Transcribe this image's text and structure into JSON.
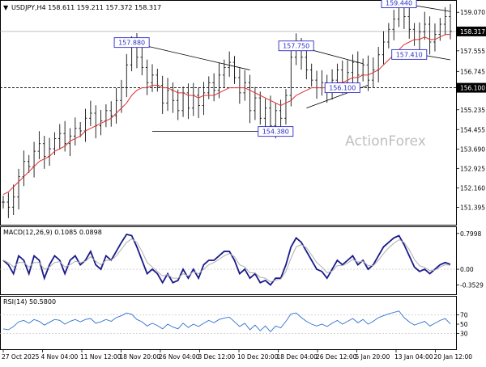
{
  "colors": {
    "price_bar": "#111111",
    "ma": "#e03030",
    "trendline": "#000000",
    "label_box": "#2b2bc9",
    "macd_main": "#1a1a8c",
    "macd_signal": "#b0b0b0",
    "rsi": "#2e6fd0",
    "current_price_box": "#000000",
    "watermark": "#bfbfbf"
  },
  "watermark": "ActionForex",
  "chart_data": [
    {
      "type": "candlestick",
      "title": "USDJPY,H4  158.611 159.211 157.372 158.317",
      "ylim": [
        150.9,
        159.3
      ],
      "y_ticks": [
        "159.070",
        "158.317",
        "157.555",
        "156.745",
        "156.100",
        "155.235",
        "154.455",
        "153.690",
        "152.925",
        "152.160",
        "151.395"
      ],
      "current_price": 158.317,
      "close_series": [
        151.6,
        151.4,
        151.8,
        152.6,
        153.2,
        153.0,
        153.6,
        153.9,
        153.4,
        153.7,
        154.1,
        154.3,
        153.9,
        154.2,
        154.5,
        154.4,
        154.9,
        155.1,
        154.6,
        154.8,
        155.2,
        155.0,
        155.6,
        156.1,
        157.0,
        157.88,
        157.3,
        156.9,
        156.3,
        156.6,
        156.2,
        155.5,
        156.0,
        155.6,
        155.2,
        155.9,
        155.3,
        155.8,
        155.4,
        155.9,
        156.3,
        156.0,
        156.6,
        156.9,
        157.1,
        156.5,
        155.9,
        156.3,
        155.2,
        155.7,
        154.9,
        155.3,
        154.6,
        155.2,
        154.9,
        155.8,
        157.3,
        157.75,
        157.3,
        156.8,
        156.4,
        156.1,
        156.3,
        156.0,
        156.4,
        156.8,
        156.3,
        156.7,
        157.1,
        156.6,
        157.0,
        156.4,
        156.8,
        157.4,
        157.9,
        158.4,
        158.8,
        159.44,
        158.9,
        158.4,
        158.0,
        158.3,
        158.6,
        157.9,
        158.2,
        158.6,
        158.9,
        158.317
      ],
      "ma_series": [
        151.9,
        152.0,
        152.2,
        152.4,
        152.6,
        152.8,
        153.0,
        153.2,
        153.3,
        153.4,
        153.6,
        153.7,
        153.8,
        154.0,
        154.1,
        154.2,
        154.4,
        154.5,
        154.6,
        154.7,
        154.8,
        154.9,
        155.1,
        155.3,
        155.5,
        155.8,
        156.0,
        156.1,
        156.1,
        156.2,
        156.2,
        156.1,
        156.1,
        156.0,
        155.9,
        155.9,
        155.8,
        155.8,
        155.7,
        155.8,
        155.8,
        155.8,
        155.9,
        156.0,
        156.1,
        156.1,
        156.1,
        156.1,
        156.0,
        155.9,
        155.8,
        155.7,
        155.6,
        155.5,
        155.4,
        155.5,
        155.6,
        155.8,
        155.9,
        156.0,
        156.1,
        156.1,
        156.1,
        156.1,
        156.2,
        156.3,
        156.3,
        156.4,
        156.5,
        156.5,
        156.6,
        156.6,
        156.7,
        156.8,
        157.0,
        157.2,
        157.4,
        157.6,
        157.8,
        157.9,
        158.0,
        158.0,
        158.1,
        158.0,
        158.0,
        158.1,
        158.2,
        158.2
      ],
      "annotations": [
        {
          "label": "157.880",
          "value": 157.88,
          "index": 25
        },
        {
          "label": "154.380",
          "value": 154.38,
          "index": 53
        },
        {
          "label": "157.750",
          "value": 157.75,
          "index": 57
        },
        {
          "label": "156.100",
          "value": 156.1,
          "index": 66
        },
        {
          "label": "159.440",
          "value": 159.44,
          "index": 77
        },
        {
          "label": "157.410",
          "value": 157.41,
          "index": 79
        }
      ],
      "horizontal_lines": [
        {
          "value": 156.1,
          "style": "dashed",
          "label": "156.100"
        },
        {
          "value": 154.38,
          "style": "solid",
          "from_index": 29,
          "to_index": 55
        }
      ],
      "trendlines": [
        {
          "from": [
            25,
            157.88
          ],
          "to": [
            48,
            156.8
          ]
        },
        {
          "from": [
            57,
            157.75
          ],
          "to": [
            70,
            157.05
          ]
        },
        {
          "from": [
            59,
            155.3
          ],
          "to": [
            71,
            156.2
          ]
        },
        {
          "from": [
            77,
            159.44
          ],
          "to": [
            87,
            159.1
          ]
        },
        {
          "from": [
            77,
            157.55
          ],
          "to": [
            87,
            157.2
          ]
        }
      ],
      "x_tick_labels": [
        "27 Oct 2025",
        "4 Nov 04:00",
        "11 Nov 12:00",
        "18 Nov 20:00",
        "26 Nov 04:00",
        "3 Dec 12:00",
        "10 Dec 20:00",
        "18 Dec 04:00",
        "26 Dec 12:00",
        "5 Jan 20:00",
        "13 Jan 04:00",
        "20 Jan 12:00"
      ]
    },
    {
      "type": "line",
      "title": "MACD(12,26,9) 0.1085 0.0898",
      "ylim": [
        -0.45,
        0.85
      ],
      "y_ticks": [
        "0.7998",
        "0.00",
        "-0.3529"
      ],
      "series": [
        {
          "name": "MACD",
          "values": [
            0.2,
            0.1,
            -0.1,
            0.3,
            0.2,
            -0.1,
            0.3,
            0.2,
            -0.2,
            0.1,
            0.3,
            0.2,
            -0.1,
            0.2,
            0.3,
            0.1,
            0.2,
            0.4,
            0.1,
            0.0,
            0.3,
            0.2,
            0.4,
            0.6,
            0.78,
            0.75,
            0.5,
            0.2,
            -0.1,
            0.0,
            -0.1,
            -0.3,
            -0.1,
            -0.3,
            -0.25,
            0.0,
            -0.2,
            0.0,
            -0.2,
            0.1,
            0.2,
            0.2,
            0.3,
            0.4,
            0.4,
            0.2,
            -0.1,
            0.0,
            -0.2,
            -0.1,
            -0.3,
            -0.25,
            -0.35,
            -0.2,
            -0.2,
            0.1,
            0.5,
            0.7,
            0.6,
            0.4,
            0.2,
            0.0,
            -0.05,
            -0.2,
            0.0,
            0.2,
            0.1,
            0.2,
            0.3,
            0.1,
            0.2,
            0.0,
            0.1,
            0.3,
            0.5,
            0.6,
            0.7,
            0.75,
            0.55,
            0.3,
            0.05,
            -0.05,
            0.0,
            -0.1,
            0.0,
            0.1,
            0.15,
            0.1085
          ]
        },
        {
          "name": "Signal",
          "values": [
            0.2,
            0.15,
            0.05,
            0.15,
            0.15,
            0.05,
            0.15,
            0.15,
            0.0,
            0.05,
            0.15,
            0.17,
            0.05,
            0.1,
            0.18,
            0.15,
            0.18,
            0.28,
            0.18,
            0.1,
            0.2,
            0.2,
            0.3,
            0.45,
            0.6,
            0.68,
            0.6,
            0.4,
            0.15,
            0.05,
            -0.05,
            -0.15,
            -0.12,
            -0.2,
            -0.2,
            -0.1,
            -0.15,
            -0.05,
            -0.1,
            0.0,
            0.1,
            0.15,
            0.22,
            0.3,
            0.35,
            0.28,
            0.1,
            0.05,
            -0.08,
            -0.08,
            -0.18,
            -0.2,
            -0.28,
            -0.24,
            -0.22,
            -0.05,
            0.25,
            0.5,
            0.55,
            0.48,
            0.32,
            0.15,
            0.05,
            -0.08,
            -0.04,
            0.08,
            0.08,
            0.14,
            0.22,
            0.16,
            0.18,
            0.08,
            0.08,
            0.2,
            0.35,
            0.48,
            0.58,
            0.66,
            0.6,
            0.44,
            0.22,
            0.08,
            0.04,
            -0.03,
            -0.02,
            0.05,
            0.1,
            0.0898
          ]
        }
      ]
    },
    {
      "type": "line",
      "title": "RSI(14) 50.5800",
      "ylim": [
        0,
        100
      ],
      "y_ticks": [
        "70",
        "50",
        "30"
      ],
      "reference_lines": [
        70,
        30
      ],
      "series": [
        {
          "name": "RSI",
          "values": [
            40,
            38,
            45,
            55,
            58,
            52,
            60,
            56,
            48,
            54,
            60,
            58,
            50,
            56,
            60,
            55,
            60,
            62,
            52,
            55,
            60,
            56,
            64,
            68,
            74,
            71,
            60,
            55,
            46,
            52,
            47,
            40,
            50,
            44,
            40,
            52,
            43,
            50,
            45,
            52,
            58,
            53,
            60,
            63,
            65,
            55,
            45,
            52,
            38,
            48,
            36,
            46,
            34,
            46,
            42,
            56,
            72,
            74,
            64,
            56,
            50,
            46,
            50,
            45,
            52,
            58,
            50,
            56,
            62,
            53,
            60,
            50,
            56,
            64,
            68,
            72,
            75,
            78,
            64,
            55,
            48,
            52,
            56,
            46,
            52,
            58,
            62,
            50.58
          ]
        }
      ]
    }
  ]
}
